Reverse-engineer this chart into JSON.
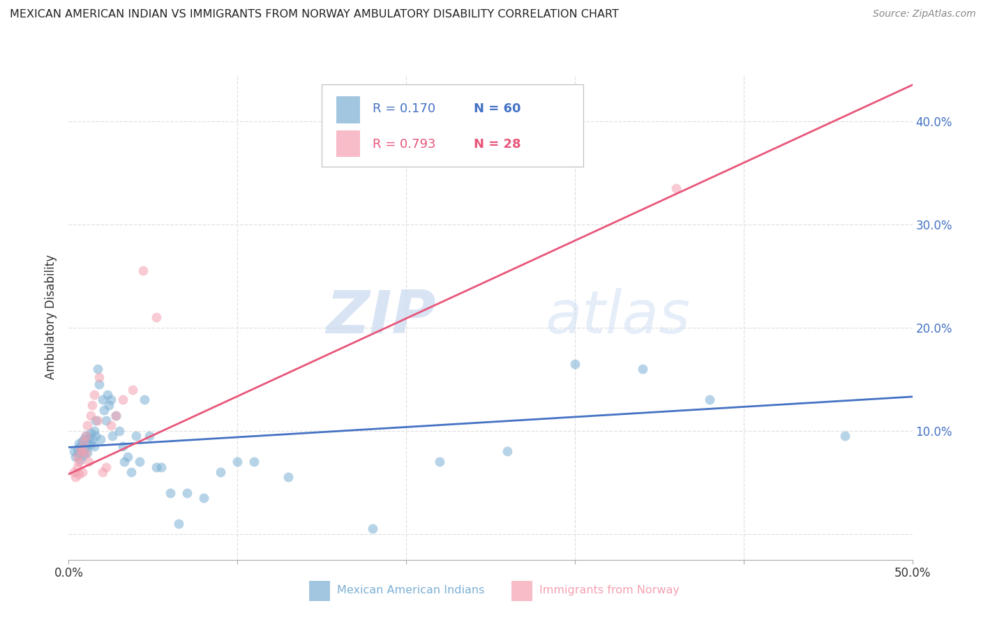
{
  "title": "MEXICAN AMERICAN INDIAN VS IMMIGRANTS FROM NORWAY AMBULATORY DISABILITY CORRELATION CHART",
  "source": "Source: ZipAtlas.com",
  "ylabel": "Ambulatory Disability",
  "xlim": [
    0.0,
    0.5
  ],
  "ylim": [
    -0.025,
    0.445
  ],
  "yticks": [
    0.0,
    0.1,
    0.2,
    0.3,
    0.4
  ],
  "xticks": [
    0.0,
    0.1,
    0.2,
    0.3,
    0.4,
    0.5
  ],
  "blue_color": "#7bafd4",
  "pink_color": "#f4a0b0",
  "blue_line_color": "#4472c4",
  "pink_line_color": "#e8567a",
  "right_axis_color": "#4472c4",
  "legend_R1": "R = 0.170",
  "legend_N1": "N = 60",
  "legend_R2": "R = 0.793",
  "legend_N2": "N = 28",
  "blue_scatter_x": [
    0.003,
    0.004,
    0.005,
    0.006,
    0.006,
    0.007,
    0.007,
    0.008,
    0.008,
    0.009,
    0.009,
    0.01,
    0.01,
    0.011,
    0.011,
    0.012,
    0.013,
    0.013,
    0.014,
    0.015,
    0.015,
    0.016,
    0.016,
    0.017,
    0.018,
    0.019,
    0.02,
    0.021,
    0.022,
    0.023,
    0.024,
    0.025,
    0.026,
    0.028,
    0.03,
    0.032,
    0.033,
    0.035,
    0.037,
    0.04,
    0.042,
    0.045,
    0.048,
    0.052,
    0.055,
    0.06,
    0.065,
    0.07,
    0.08,
    0.09,
    0.1,
    0.11,
    0.13,
    0.18,
    0.22,
    0.26,
    0.3,
    0.34,
    0.38,
    0.46
  ],
  "blue_scatter_y": [
    0.08,
    0.075,
    0.082,
    0.078,
    0.088,
    0.072,
    0.085,
    0.08,
    0.09,
    0.076,
    0.092,
    0.083,
    0.095,
    0.079,
    0.088,
    0.093,
    0.087,
    0.098,
    0.092,
    0.085,
    0.1,
    0.095,
    0.11,
    0.16,
    0.145,
    0.092,
    0.13,
    0.12,
    0.11,
    0.135,
    0.125,
    0.13,
    0.095,
    0.115,
    0.1,
    0.085,
    0.07,
    0.075,
    0.06,
    0.095,
    0.07,
    0.13,
    0.095,
    0.065,
    0.065,
    0.04,
    0.01,
    0.04,
    0.035,
    0.06,
    0.07,
    0.07,
    0.055,
    0.005,
    0.07,
    0.08,
    0.165,
    0.16,
    0.13,
    0.095
  ],
  "pink_scatter_x": [
    0.003,
    0.004,
    0.005,
    0.005,
    0.006,
    0.006,
    0.007,
    0.008,
    0.008,
    0.009,
    0.01,
    0.01,
    0.011,
    0.012,
    0.013,
    0.014,
    0.015,
    0.017,
    0.018,
    0.02,
    0.022,
    0.025,
    0.028,
    0.032,
    0.038,
    0.044,
    0.052,
    0.36
  ],
  "pink_scatter_y": [
    0.06,
    0.055,
    0.065,
    0.075,
    0.058,
    0.07,
    0.082,
    0.06,
    0.08,
    0.09,
    0.078,
    0.095,
    0.105,
    0.07,
    0.115,
    0.125,
    0.135,
    0.11,
    0.152,
    0.06,
    0.065,
    0.105,
    0.115,
    0.13,
    0.14,
    0.255,
    0.21,
    0.335
  ],
  "blue_line_x": [
    0.0,
    0.5
  ],
  "blue_line_y": [
    0.084,
    0.133
  ],
  "pink_line_x": [
    0.0,
    0.5
  ],
  "pink_line_y": [
    0.058,
    0.435
  ],
  "watermark_zip": "ZIP",
  "watermark_atlas": "atlas",
  "background_color": "#ffffff",
  "grid_color": "#e0e0e0",
  "bottom_legend_blue": "Mexican American Indians",
  "bottom_legend_pink": "Immigrants from Norway"
}
